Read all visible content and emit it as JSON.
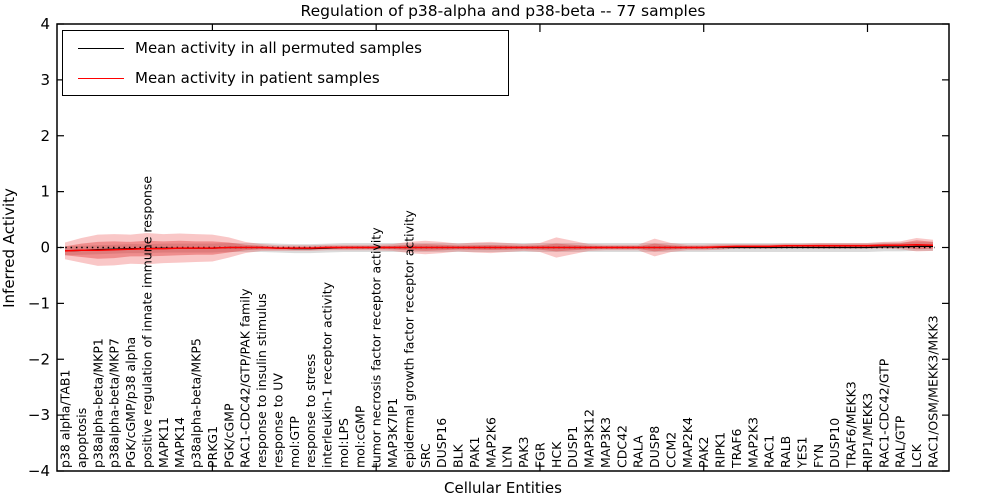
{
  "window": {
    "kind": "matplotlib-style figure"
  },
  "legend": {
    "items": [
      {
        "label": "Mean activity in all permuted samples",
        "color": "#000000"
      },
      {
        "label": "Mean activity in patient samples",
        "color": "#ff0000"
      }
    ]
  },
  "chart_data": {
    "type": "line",
    "title": "Regulation of p38-alpha and p38-beta -- 77 samples",
    "xlabel": "Cellular Entities",
    "ylabel": "Inferred Activity",
    "ylim": [
      -4,
      4
    ],
    "grid": false,
    "legend_position": "upper-left-inside",
    "yticks": [
      4,
      3,
      2,
      1,
      0,
      -1,
      -2,
      -3,
      -4
    ],
    "ytick_labels": [
      "4",
      "3",
      "2",
      "1",
      "0",
      "−1",
      "−2",
      "−3",
      "−4"
    ],
    "top_tick_category_indices": [
      9,
      19,
      29,
      39,
      49
    ],
    "categories": [
      "p38 alpha/TAB1",
      "apoptosis",
      "p38alpha-beta/MKP1",
      "p38alpha-beta/MKP7",
      "PGK/cGMP/p38 alpha",
      "positive regulation of innate immune response",
      "MAPK11",
      "MAPK14",
      "p38alpha-beta/MKP5",
      "PRKG1",
      "PGK/cGMP",
      "RAC1-CDC42/GTP/PAK family",
      "response to insulin stimulus",
      "response to UV",
      "mol:GTP",
      "response to stress",
      "interleukin-1 receptor activity",
      "mol:LPS",
      "mol:cGMP",
      "tumor necrosis factor receptor activity",
      "MAP3K7IP1",
      "epidermal growth factor receptor activity",
      "SRC",
      "DUSP16",
      "BLK",
      "PAK1",
      "MAP2K6",
      "LYN",
      "PAK3",
      "FGR",
      "HCK",
      "DUSP1",
      "MAP3K12",
      "MAP3K3",
      "CDC42",
      "RALA",
      "DUSP8",
      "CCM2",
      "MAP2K4",
      "PAK2",
      "RIPK1",
      "TRAF6",
      "MAP2K3",
      "RAC1",
      "RALB",
      "YES1",
      "FYN",
      "DUSP10",
      "TRAF6/MEKK3",
      "RIP1/MEKK3",
      "RAC1-CDC42/GTP",
      "RAL/GTP",
      "LCK",
      "RAC1/OSM/MEKK3/MKK3"
    ],
    "series": [
      {
        "name": "Mean activity in all permuted samples",
        "color": "#000000",
        "values": [
          -0.06,
          -0.05,
          -0.04,
          -0.03,
          -0.02,
          -0.02,
          -0.01,
          -0.01,
          -0.01,
          -0.01,
          0,
          0,
          0,
          -0.01,
          -0.02,
          -0.02,
          -0.01,
          0,
          0,
          0,
          0,
          0,
          0,
          0,
          0,
          0,
          0,
          0,
          0,
          0,
          0,
          0,
          0,
          0,
          0,
          0,
          0,
          0,
          0,
          0,
          0,
          0,
          0,
          0,
          0,
          0,
          0,
          0,
          0,
          0,
          0.01,
          0.01,
          0.02,
          0.02
        ]
      },
      {
        "name": "Mean activity in patient samples",
        "color": "#ff0000",
        "values": [
          -0.06,
          -0.05,
          -0.05,
          -0.04,
          -0.03,
          -0.02,
          -0.02,
          -0.01,
          -0.01,
          -0.01,
          0,
          0,
          0,
          -0.01,
          -0.01,
          -0.01,
          0,
          0,
          0,
          0,
          0,
          0,
          0,
          0,
          0,
          0,
          0,
          0,
          0,
          0,
          0,
          0,
          0,
          0,
          0,
          0,
          0,
          0,
          0,
          0,
          0.01,
          0.02,
          0.02,
          0.02,
          0.03,
          0.03,
          0.03,
          0.03,
          0.03,
          0.03,
          0.04,
          0.04,
          0.05,
          0.04
        ]
      }
    ],
    "bands": [
      {
        "name": "permuted-samples-spread",
        "color": "rgba(110,110,110,0.25)",
        "center_series": 0,
        "halfwidth_all": 0.08
      },
      {
        "name": "patient-samples-outer-spread",
        "color": "rgba(235,55,55,0.28)",
        "center_series": 1,
        "halfwidths": [
          0.15,
          0.22,
          0.28,
          0.28,
          0.26,
          0.28,
          0.26,
          0.26,
          0.25,
          0.24,
          0.18,
          0.1,
          0.06,
          0.05,
          0.05,
          0.05,
          0.05,
          0.05,
          0.05,
          0.05,
          0.06,
          0.1,
          0.12,
          0.1,
          0.07,
          0.09,
          0.1,
          0.08,
          0.06,
          0.08,
          0.18,
          0.12,
          0.06,
          0.05,
          0.05,
          0.05,
          0.16,
          0.08,
          0.05,
          0.05,
          0.05,
          0.04,
          0.04,
          0.04,
          0.04,
          0.04,
          0.05,
          0.05,
          0.05,
          0.05,
          0.06,
          0.07,
          0.12,
          0.1
        ]
      },
      {
        "name": "patient-samples-inner-spread",
        "color": "rgba(220,35,35,0.35)",
        "center_series": 1,
        "halfwidths": [
          0.08,
          0.12,
          0.15,
          0.15,
          0.13,
          0.14,
          0.13,
          0.13,
          0.12,
          0.12,
          0.09,
          0.05,
          0.03,
          0.025,
          0.025,
          0.025,
          0.025,
          0.025,
          0.025,
          0.025,
          0.03,
          0.05,
          0.06,
          0.05,
          0.035,
          0.04,
          0.045,
          0.04,
          0.03,
          0.04,
          0.07,
          0.05,
          0.03,
          0.025,
          0.025,
          0.025,
          0.07,
          0.04,
          0.025,
          0.025,
          0.025,
          0.02,
          0.02,
          0.02,
          0.02,
          0.02,
          0.025,
          0.025,
          0.025,
          0.025,
          0.03,
          0.035,
          0.08,
          0.06
        ]
      }
    ],
    "zero_line": {
      "y": 0,
      "style": "dotted",
      "color": "#000000"
    }
  }
}
